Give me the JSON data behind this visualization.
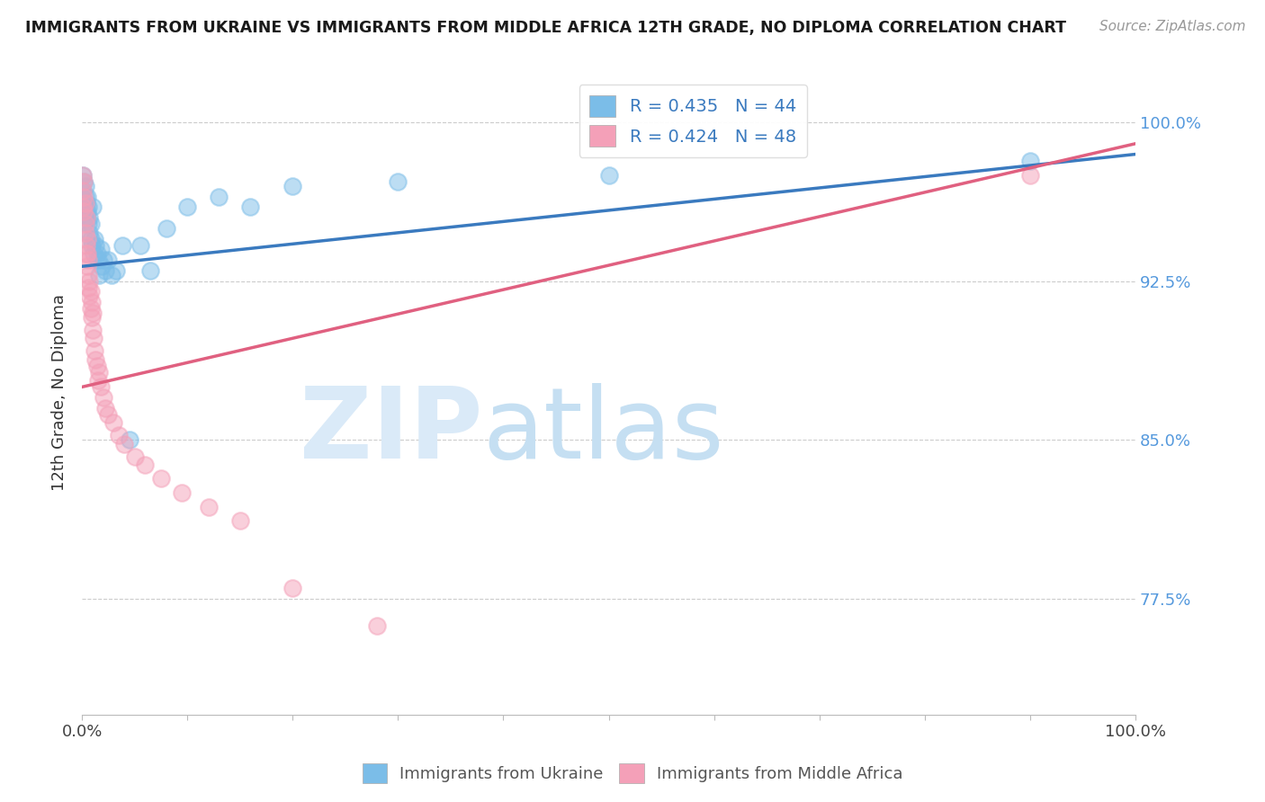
{
  "title": "IMMIGRANTS FROM UKRAINE VS IMMIGRANTS FROM MIDDLE AFRICA 12TH GRADE, NO DIPLOMA CORRELATION CHART",
  "source": "Source: ZipAtlas.com",
  "ylabel": "12th Grade, No Diploma",
  "xlim": [
    0,
    1.0
  ],
  "ylim": [
    0.72,
    1.025
  ],
  "yticks": [
    0.775,
    0.85,
    0.925,
    1.0
  ],
  "ytick_labels": [
    "77.5%",
    "85.0%",
    "92.5%",
    "100.0%"
  ],
  "legend_blue_label": "R = 0.435   N = 44",
  "legend_pink_label": "R = 0.424   N = 48",
  "bottom_legend_blue": "Immigrants from Ukraine",
  "bottom_legend_pink": "Immigrants from Middle Africa",
  "blue_color": "#7bbde8",
  "pink_color": "#f4a0b8",
  "blue_line_color": "#3a7abf",
  "pink_line_color": "#e06080",
  "right_axis_color": "#5599dd",
  "ukraine_x": [
    0.001,
    0.001,
    0.002,
    0.002,
    0.003,
    0.003,
    0.003,
    0.004,
    0.004,
    0.005,
    0.005,
    0.006,
    0.006,
    0.007,
    0.007,
    0.008,
    0.008,
    0.009,
    0.01,
    0.011,
    0.012,
    0.013,
    0.014,
    0.015,
    0.016,
    0.018,
    0.019,
    0.02,
    0.022,
    0.025,
    0.028,
    0.032,
    0.038,
    0.045,
    0.055,
    0.065,
    0.08,
    0.1,
    0.13,
    0.16,
    0.2,
    0.3,
    0.5,
    0.9
  ],
  "ukraine_y": [
    0.968,
    0.975,
    0.96,
    0.972,
    0.965,
    0.958,
    0.97,
    0.962,
    0.955,
    0.958,
    0.965,
    0.952,
    0.96,
    0.948,
    0.955,
    0.945,
    0.952,
    0.942,
    0.96,
    0.938,
    0.945,
    0.942,
    0.938,
    0.935,
    0.928,
    0.94,
    0.932,
    0.935,
    0.93,
    0.935,
    0.928,
    0.93,
    0.942,
    0.85,
    0.942,
    0.93,
    0.95,
    0.96,
    0.965,
    0.96,
    0.97,
    0.972,
    0.975,
    0.982
  ],
  "africa_x": [
    0.001,
    0.001,
    0.001,
    0.002,
    0.002,
    0.002,
    0.003,
    0.003,
    0.003,
    0.004,
    0.004,
    0.004,
    0.005,
    0.005,
    0.005,
    0.006,
    0.006,
    0.006,
    0.007,
    0.007,
    0.008,
    0.008,
    0.009,
    0.009,
    0.01,
    0.01,
    0.011,
    0.012,
    0.013,
    0.014,
    0.015,
    0.016,
    0.018,
    0.02,
    0.022,
    0.025,
    0.03,
    0.035,
    0.04,
    0.05,
    0.06,
    0.075,
    0.095,
    0.12,
    0.15,
    0.2,
    0.28,
    0.9
  ],
  "africa_y": [
    0.968,
    0.975,
    0.96,
    0.965,
    0.958,
    0.972,
    0.952,
    0.962,
    0.948,
    0.942,
    0.955,
    0.938,
    0.945,
    0.932,
    0.938,
    0.928,
    0.935,
    0.922,
    0.918,
    0.925,
    0.912,
    0.92,
    0.908,
    0.915,
    0.902,
    0.91,
    0.898,
    0.892,
    0.888,
    0.885,
    0.878,
    0.882,
    0.875,
    0.87,
    0.865,
    0.862,
    0.858,
    0.852,
    0.848,
    0.842,
    0.838,
    0.832,
    0.825,
    0.818,
    0.812,
    0.78,
    0.762,
    0.975
  ],
  "blue_trend_x": [
    0.0,
    1.0
  ],
  "blue_trend_y_start": 0.932,
  "blue_trend_y_end": 0.985,
  "pink_trend_x": [
    0.0,
    1.0
  ],
  "pink_trend_y_start": 0.875,
  "pink_trend_y_end": 0.99
}
